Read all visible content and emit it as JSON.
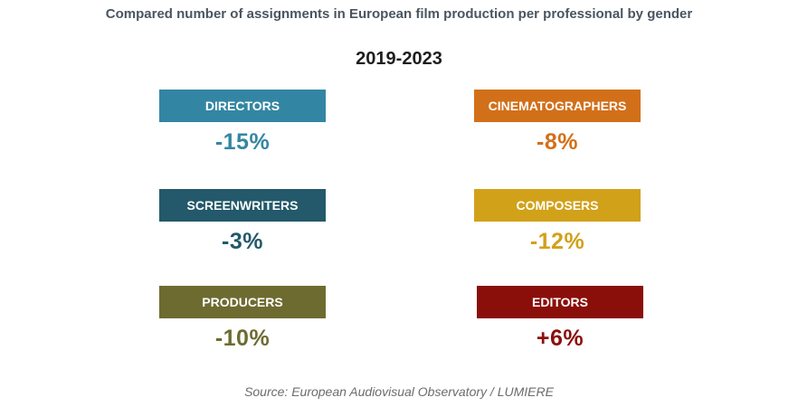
{
  "title": "Compared number of assignments in European film production per professional by gender",
  "period": "2019-2023",
  "source": "Source: European Audiovisual Observatory / LUMIERE",
  "chart_data": {
    "type": "table",
    "title": "Compared number of assignments in European film production per professional by gender",
    "subtitle": "2019-2023",
    "categories": [
      "DIRECTORS",
      "CINEMATOGRAPHERS",
      "SCREENWRITERS",
      "COMPOSERS",
      "PRODUCERS",
      "EDITORS"
    ],
    "values": [
      -15,
      -8,
      -3,
      -12,
      -10,
      6
    ],
    "unit": "%",
    "cards": [
      {
        "label": "DIRECTORS",
        "value": "-15%",
        "color": "#3386a3"
      },
      {
        "label": "CINEMATOGRAPHERS",
        "value": "-8%",
        "color": "#d2701a"
      },
      {
        "label": "SCREENWRITERS",
        "value": "-3%",
        "color": "#23596a"
      },
      {
        "label": "COMPOSERS",
        "value": "-12%",
        "color": "#d2a11a"
      },
      {
        "label": "PRODUCERS",
        "value": "-10%",
        "color": "#6e6b31"
      },
      {
        "label": "EDITORS",
        "value": "+6%",
        "color": "#8a0f0b"
      }
    ]
  }
}
